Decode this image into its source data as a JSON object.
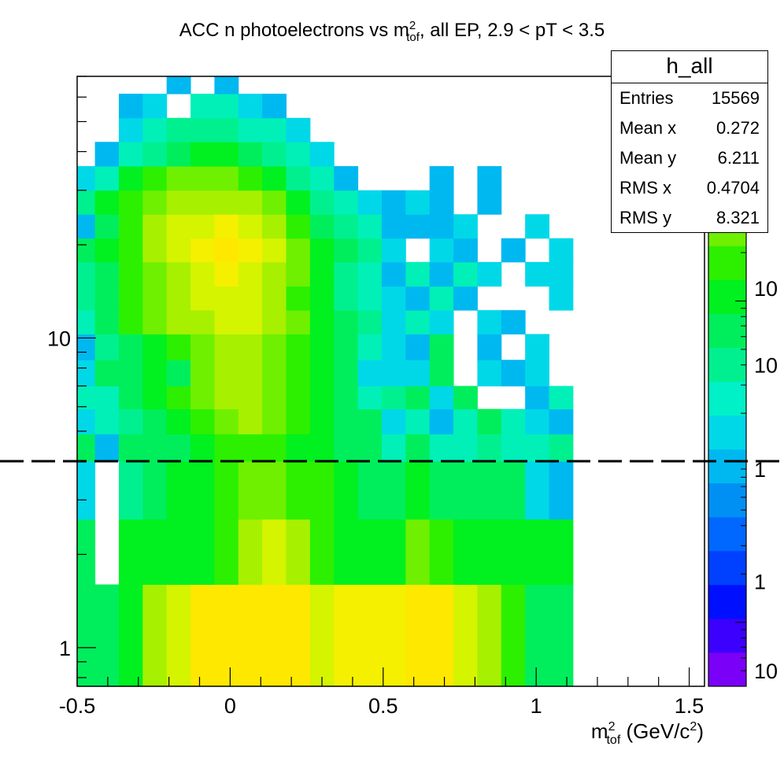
{
  "chart_data": {
    "type": "heatmap",
    "title": "ACC n photoelectrons vs m",
    "title_sup": "2",
    "title_sub": "tof",
    "title_rest": ", all EP, 2.9 < pT < 3.5",
    "xlabel": "m",
    "xlabel_sup": "2",
    "xlabel_sub": "tof",
    "xlabel_rest": " (GeV/c",
    "xlabel_sup2": "2",
    "xlabel_end": ")",
    "ylabel": "",
    "xlim": [
      -0.5,
      1.55
    ],
    "ylim": [
      0.75,
      70
    ],
    "y_scale": "log",
    "x_tick_labels": [
      "-0.5",
      "0",
      "0.5",
      "1",
      "1.5"
    ],
    "x_ticks": [
      -0.5,
      0,
      0.5,
      1,
      1.5
    ],
    "y_tick_labels": [
      "1",
      "10"
    ],
    "y_ticks": [
      1,
      10
    ],
    "colorbar_labels": [
      "10",
      "10",
      "1",
      "1",
      "10"
    ],
    "colorbar_label_values": [
      12.0,
      4.0,
      0.9,
      0.18,
      0.05
    ],
    "colorbar_range": [
      0.04,
      250
    ],
    "cut_line_y": 4,
    "x_bin_width": 0.0781,
    "x_start": -0.52,
    "y_bins": [
      {
        "y0": 0.75,
        "y1": 1.6,
        "v": [
          28,
          28,
          35,
          50,
          60,
          80,
          95,
          95,
          95,
          80,
          60,
          75,
          75,
          75,
          85,
          95,
          65,
          55,
          40,
          30,
          28
        ]
      },
      {
        "y0": 1.6,
        "y1": 2.6,
        "v": [
          28,
          0,
          35,
          35,
          35,
          35,
          40,
          50,
          60,
          55,
          40,
          35,
          35,
          35,
          45,
          40,
          35,
          35,
          35,
          35,
          35
        ]
      },
      {
        "y0": 2.6,
        "y1": 4.0,
        "v": [
          8,
          0,
          24,
          30,
          33,
          35,
          40,
          45,
          45,
          40,
          40,
          35,
          30,
          30,
          35,
          30,
          28,
          30,
          30,
          10,
          6
        ]
      },
      {
        "y0": 4.0,
        "y1": 4.9,
        "v": [
          30,
          6,
          30,
          30,
          30,
          35,
          40,
          40,
          40,
          35,
          35,
          30,
          30,
          20,
          30,
          20,
          18,
          25,
          20,
          20,
          22
        ]
      },
      {
        "y0": 4.9,
        "y1": 5.9,
        "v": [
          12,
          20,
          24,
          30,
          35,
          40,
          45,
          50,
          45,
          40,
          35,
          30,
          30,
          10,
          20,
          5,
          20,
          30,
          20,
          10,
          5
        ]
      },
      {
        "y0": 5.9,
        "y1": 7.0,
        "v": [
          20,
          20,
          30,
          35,
          40,
          45,
          50,
          55,
          45,
          40,
          35,
          30,
          20,
          25,
          30,
          10,
          30,
          0,
          0,
          5,
          20
        ]
      },
      {
        "y0": 7.0,
        "y1": 8.5,
        "v": [
          12,
          30,
          30,
          35,
          30,
          45,
          50,
          55,
          45,
          40,
          35,
          30,
          8,
          8,
          10,
          30,
          0,
          10,
          5,
          10,
          0
        ]
      },
      {
        "y0": 8.5,
        "y1": 10.3,
        "v": [
          5,
          25,
          30,
          35,
          40,
          45,
          55,
          55,
          45,
          40,
          35,
          30,
          20,
          10,
          5,
          30,
          0,
          5,
          0,
          10,
          0
        ]
      },
      {
        "y0": 10.3,
        "y1": 12.3,
        "v": [
          20,
          30,
          40,
          45,
          50,
          55,
          60,
          60,
          50,
          45,
          35,
          30,
          25,
          10,
          20,
          10,
          0,
          10,
          5,
          0,
          0
        ]
      },
      {
        "y0": 12.3,
        "y1": 14.7,
        "v": [
          25,
          30,
          40,
          45,
          55,
          60,
          65,
          60,
          50,
          40,
          35,
          25,
          20,
          10,
          5,
          20,
          5,
          0,
          0,
          0,
          10
        ]
      },
      {
        "y0": 14.7,
        "y1": 17.6,
        "v": [
          25,
          30,
          40,
          45,
          55,
          65,
          75,
          65,
          55,
          45,
          35,
          25,
          20,
          5,
          20,
          5,
          20,
          10,
          0,
          10,
          10
        ]
      },
      {
        "y0": 17.6,
        "y1": 21.0,
        "v": [
          30,
          35,
          40,
          50,
          60,
          70,
          80,
          70,
          60,
          45,
          35,
          28,
          25,
          10,
          0,
          10,
          5,
          0,
          5,
          0,
          10
        ]
      },
      {
        "y0": 21.0,
        "y1": 25.1,
        "v": [
          5,
          30,
          40,
          50,
          60,
          65,
          70,
          65,
          55,
          40,
          30,
          25,
          20,
          5,
          5,
          5,
          10,
          0,
          0,
          10,
          0
        ]
      },
      {
        "y0": 25.1,
        "y1": 30.0,
        "v": [
          25,
          35,
          40,
          45,
          50,
          55,
          55,
          50,
          45,
          35,
          25,
          20,
          10,
          5,
          10,
          5,
          0,
          5,
          0,
          0,
          0
        ]
      },
      {
        "y0": 30.0,
        "y1": 35.9,
        "v": [
          10,
          20,
          35,
          40,
          45,
          45,
          45,
          40,
          35,
          25,
          20,
          5,
          0,
          0,
          0,
          5,
          0,
          5,
          0,
          0,
          0
        ]
      },
      {
        "y0": 35.9,
        "y1": 43.0,
        "v": [
          0,
          5,
          15,
          25,
          30,
          35,
          35,
          30,
          25,
          20,
          10,
          0,
          0,
          0,
          0,
          0,
          0,
          0,
          0,
          0,
          0
        ]
      },
      {
        "y0": 43.0,
        "y1": 51.4,
        "v": [
          0,
          0,
          10,
          20,
          25,
          25,
          25,
          20,
          15,
          10,
          0,
          0,
          0,
          0,
          0,
          0,
          0,
          0,
          0,
          0,
          0
        ]
      },
      {
        "y0": 51.4,
        "y1": 61.5,
        "v": [
          0,
          0,
          5,
          10,
          0,
          15,
          20,
          10,
          5,
          0,
          0,
          0,
          0,
          0,
          0,
          0,
          0,
          0,
          0,
          0,
          0
        ]
      },
      {
        "y0": 61.5,
        "y1": 70.0,
        "v": [
          0,
          0,
          0,
          0,
          5,
          0,
          5,
          0,
          0,
          0,
          0,
          0,
          0,
          0,
          0,
          0,
          0,
          0,
          0,
          0,
          0
        ]
      }
    ]
  },
  "stats": {
    "name": "h_all",
    "rows": [
      {
        "key": "Entries",
        "value": "15569"
      },
      {
        "key": "Mean x",
        "value": "0.272"
      },
      {
        "key": "Mean y",
        "value": "6.211"
      },
      {
        "key": "RMS x",
        "value": "0.4704"
      },
      {
        "key": "RMS y",
        "value": "8.321"
      }
    ]
  }
}
